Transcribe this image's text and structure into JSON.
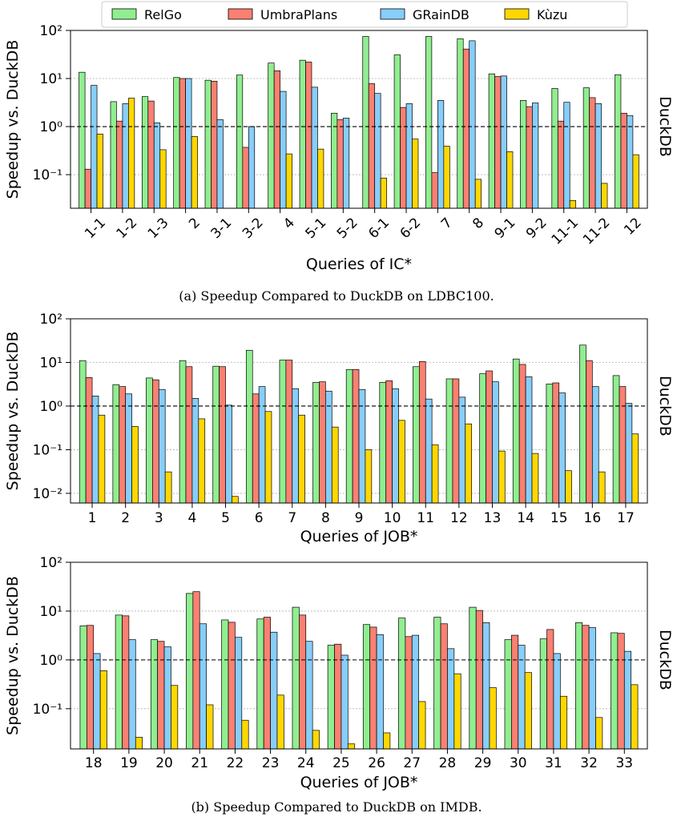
{
  "legend": [
    {
      "name": "RelGo",
      "color": "#90EE90"
    },
    {
      "name": "UmbraPlans",
      "color": "#FA8072"
    },
    {
      "name": "GRainDB",
      "color": "#87CEFA"
    },
    {
      "name": "Kùzu",
      "color": "#FFD700"
    }
  ],
  "captions": {
    "a": "(a) Speedup Compared to DuckDB on LDBC100.",
    "b": "(b) Speedup Compared to DuckDB on IMDB."
  },
  "chart_data": [
    {
      "type": "bar",
      "scale": "log",
      "xlabel": "Queries of IC*",
      "ylabel": "Speedup vs. DuckDB",
      "right_label": "DuckDB",
      "reference_line": 1.0,
      "ylim": [
        0.02,
        100
      ],
      "ytick_labels": [
        "10⁻¹",
        "10⁰",
        "10¹",
        "10²"
      ],
      "ytick_values": [
        0.1,
        1,
        10,
        100
      ],
      "categories": [
        "1-1",
        "1-2",
        "1-3",
        "2",
        "3-1",
        "3-2",
        "4",
        "5-1",
        "5-2",
        "6-1",
        "6-2",
        "7",
        "8",
        "9-1",
        "9-2",
        "11-1",
        "11-2",
        "12"
      ],
      "series": [
        {
          "name": "RelGo",
          "values": [
            13.5,
            3.3,
            4.2,
            10.5,
            9.2,
            11.8,
            21,
            24,
            1.9,
            75,
            31,
            75,
            67,
            12.5,
            3.5,
            6.2,
            6.4,
            12
          ]
        },
        {
          "name": "UmbraPlans",
          "values": [
            0.13,
            1.3,
            3.4,
            10,
            8.8,
            0.37,
            14.5,
            22,
            1.4,
            7.8,
            2.5,
            0.11,
            41,
            11,
            2.6,
            1.3,
            4,
            1.9
          ]
        },
        {
          "name": "GRainDB",
          "values": [
            7.2,
            3.0,
            1.2,
            10,
            1.4,
            1.0,
            5.4,
            6.6,
            1.5,
            4.9,
            3.0,
            3.5,
            61,
            11.3,
            3.1,
            3.2,
            3.0,
            1.7
          ]
        },
        {
          "name": "Kùzu",
          "values": [
            0.7,
            3.9,
            0.33,
            0.62,
            null,
            null,
            0.27,
            0.34,
            null,
            0.085,
            0.55,
            0.39,
            0.08,
            0.3,
            null,
            0.029,
            0.066,
            0.26
          ]
        }
      ]
    },
    {
      "type": "bar",
      "scale": "log",
      "xlabel": "Queries of JOB*",
      "ylabel": "Speedup vs. DuckDB",
      "right_label": "DuckDB",
      "reference_line": 1.0,
      "ylim": [
        0.006,
        100
      ],
      "ytick_labels": [
        "10⁻²",
        "10⁻¹",
        "10⁰",
        "10¹",
        "10²"
      ],
      "ytick_values": [
        0.01,
        0.1,
        1,
        10,
        100
      ],
      "categories": [
        "1",
        "2",
        "3",
        "4",
        "5",
        "6",
        "7",
        "8",
        "9",
        "10",
        "11",
        "12",
        "13",
        "14",
        "15",
        "16",
        "17"
      ],
      "series": [
        {
          "name": "RelGo",
          "values": [
            11,
            3.1,
            4.4,
            11,
            8.2,
            19,
            11.3,
            3.5,
            6.9,
            3.5,
            8.0,
            4.2,
            5.5,
            12,
            3.2,
            25,
            5.0
          ]
        },
        {
          "name": "UmbraPlans",
          "values": [
            4.5,
            2.8,
            4.0,
            8.0,
            8.0,
            1.9,
            11.3,
            3.6,
            6.9,
            3.8,
            10.5,
            4.2,
            6.4,
            9.0,
            3.4,
            11,
            2.8
          ]
        },
        {
          "name": "GRainDB",
          "values": [
            1.7,
            1.9,
            2.4,
            1.5,
            1.05,
            2.8,
            2.5,
            2.2,
            2.4,
            2.5,
            1.45,
            1.6,
            3.6,
            4.7,
            2.0,
            2.8,
            1.15
          ]
        },
        {
          "name": "Kùzu",
          "values": [
            0.62,
            0.34,
            0.031,
            0.51,
            0.0085,
            0.75,
            0.62,
            0.33,
            0.1,
            0.47,
            0.13,
            0.39,
            0.093,
            0.082,
            0.033,
            0.031,
            0.23
          ]
        }
      ]
    },
    {
      "type": "bar",
      "scale": "log",
      "xlabel": "Queries of JOB*",
      "ylabel": "Speedup vs. DuckDB",
      "right_label": "DuckDB",
      "reference_line": 1.0,
      "ylim": [
        0.015,
        100
      ],
      "ytick_labels": [
        "10⁻¹",
        "10⁰",
        "10¹",
        "10²"
      ],
      "ytick_values": [
        0.1,
        1,
        10,
        100
      ],
      "categories": [
        "18",
        "19",
        "20",
        "21",
        "22",
        "23",
        "24",
        "25",
        "26",
        "27",
        "28",
        "29",
        "30",
        "31",
        "32",
        "33"
      ],
      "series": [
        {
          "name": "RelGo",
          "values": [
            5.0,
            8.3,
            2.6,
            23,
            6.6,
            6.9,
            12,
            2.0,
            5.3,
            7.2,
            7.5,
            12,
            2.6,
            2.7,
            5.8,
            3.6
          ]
        },
        {
          "name": "UmbraPlans",
          "values": [
            5.1,
            8.0,
            2.4,
            25,
            5.9,
            7.5,
            8.3,
            2.1,
            4.7,
            3.0,
            5.5,
            10.3,
            3.2,
            4.2,
            5.1,
            3.5
          ]
        },
        {
          "name": "GRainDB",
          "values": [
            1.35,
            2.6,
            1.85,
            5.5,
            2.9,
            3.7,
            2.4,
            1.25,
            3.3,
            3.2,
            1.7,
            5.8,
            2.0,
            1.35,
            4.6,
            1.5
          ]
        },
        {
          "name": "Kùzu",
          "values": [
            0.6,
            0.026,
            0.3,
            0.12,
            0.058,
            0.19,
            0.036,
            0.019,
            0.032,
            0.14,
            0.52,
            0.27,
            0.55,
            0.18,
            0.066,
            0.31
          ]
        }
      ]
    }
  ]
}
